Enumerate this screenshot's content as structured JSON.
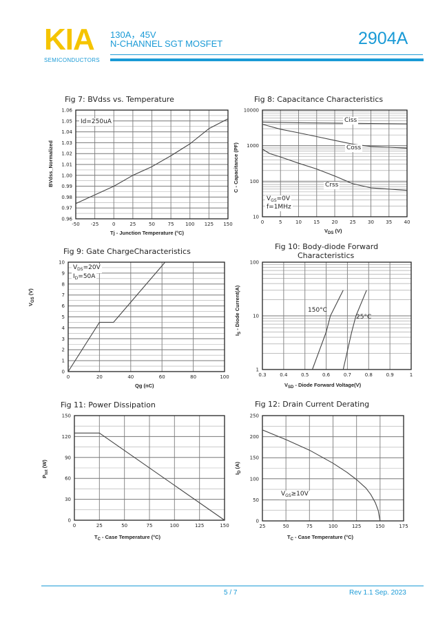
{
  "header": {
    "logo": "KIA",
    "logo_sub": "SEMICONDUCTORS",
    "spec_line1": "130A，45V",
    "spec_line2": "N-CHANNEL SGT MOSFET",
    "part_number": "2904A",
    "brand_colors": {
      "logo": "#f5c400",
      "accent": "#1a9ad6"
    }
  },
  "footer": {
    "page": "5 / 7",
    "revision": "Rev 1.1 Sep. 2023"
  },
  "chart_data": [
    {
      "type": "line",
      "title": "Fig 7: BVdss vs. Temperature",
      "ylabel": "BVdss_Normalized",
      "xlabel": "Tj - Junction Temperature (°C)",
      "xlim": [
        -50,
        150
      ],
      "ylim": [
        0.96,
        1.06
      ],
      "x_ticks": [
        -50,
        -25,
        0,
        25,
        50,
        75,
        100,
        125,
        150
      ],
      "y_ticks": [
        0.96,
        0.97,
        0.98,
        0.99,
        1.0,
        1.01,
        1.02,
        1.03,
        1.04,
        1.05,
        1.06
      ],
      "y_decimals": 2,
      "y_scale": "linear",
      "grid": true,
      "annotations": [
        "Id=250uA"
      ],
      "series": [
        {
          "x": [
            -50,
            -25,
            0,
            25,
            50,
            75,
            100,
            125,
            150
          ],
          "y": [
            0.974,
            0.982,
            0.99,
            1.0,
            1.008,
            1.018,
            1.029,
            1.043,
            1.052
          ]
        }
      ]
    },
    {
      "type": "line",
      "title": "Fig 8: Capacitance Characteristics",
      "ylabel": "C - Capacitance (PF)",
      "xlabel": {
        "main": "V",
        "sub": "DS",
        "rest": " (V)"
      },
      "xlim": [
        0,
        40
      ],
      "ylim": [
        10,
        10000
      ],
      "x_ticks": [
        0,
        5,
        10,
        15,
        20,
        25,
        30,
        35,
        40
      ],
      "y_ticks": [
        10,
        100,
        1000,
        10000
      ],
      "y_scale": "log",
      "grid": true,
      "annotations": [
        {
          "main": "V",
          "sub": "GS",
          "rest": "=0V"
        },
        "f=1MHz"
      ],
      "series": [
        {
          "name": "Ciss",
          "x": [
            0,
            10,
            20,
            30,
            40
          ],
          "y": [
            4600,
            4400,
            4300,
            4200,
            4100
          ]
        },
        {
          "name": "Coss",
          "x": [
            0,
            5,
            10,
            15,
            20,
            25,
            30,
            35,
            40
          ],
          "y": [
            4000,
            2900,
            2300,
            1800,
            1400,
            1100,
            950,
            900,
            850
          ]
        },
        {
          "name": "Crss",
          "x": [
            0,
            2,
            5,
            10,
            15,
            20,
            25,
            30,
            35,
            40
          ],
          "y": [
            800,
            600,
            480,
            320,
            220,
            140,
            85,
            65,
            60,
            55
          ]
        }
      ]
    },
    {
      "type": "line",
      "title": "Fig 9: Gate ChargeCharacteristics",
      "ylabel": {
        "main": "V",
        "sub": "GS",
        "rest": " (V)"
      },
      "xlabel": "Qg (nC)",
      "xlim": [
        0,
        100
      ],
      "ylim": [
        0,
        10
      ],
      "x_ticks": [
        0,
        20,
        40,
        60,
        80,
        100
      ],
      "y_ticks": [
        0,
        1,
        2,
        3,
        4,
        5,
        6,
        7,
        8,
        9,
        10
      ],
      "y_decimals": 0,
      "y_scale": "linear",
      "grid": true,
      "annotations": [
        {
          "main": "V",
          "sub": "DS",
          "rest": "=20V"
        },
        {
          "main": "I",
          "sub": "D",
          "rest": "=50A"
        }
      ],
      "series": [
        {
          "x": [
            0,
            20,
            29,
            62
          ],
          "y": [
            0,
            4.5,
            4.5,
            10
          ]
        }
      ]
    },
    {
      "type": "line",
      "title": "Fig 10: Body-diode Forward",
      "title_line2": "Characteristics",
      "ylabel": {
        "main": "I",
        "sub": "S",
        "rest": " - Diode Current(A)"
      },
      "xlabel": {
        "main": "V",
        "sub": "SD",
        "rest": " - Diode Forward Voltage(V)"
      },
      "xlim": [
        0.3,
        1
      ],
      "ylim": [
        1,
        100
      ],
      "x_ticks": [
        0.3,
        0.4,
        0.5,
        0.6,
        0.7,
        0.8,
        0.9,
        1
      ],
      "y_ticks": [
        1,
        10,
        100
      ],
      "y_scale": "log",
      "grid": true,
      "series": [
        {
          "name": "150°C",
          "x": [
            0.535,
            0.6,
            0.62,
            0.68
          ],
          "y": [
            1,
            5,
            10,
            30
          ]
        },
        {
          "name": "25°C",
          "x": [
            0.68,
            0.72,
            0.74,
            0.79
          ],
          "y": [
            1,
            5,
            10,
            30
          ]
        }
      ]
    },
    {
      "type": "line",
      "title": "Fig 11: Power Dissipation",
      "ylabel": {
        "main": "P",
        "sub": "tot",
        "rest": " (W)"
      },
      "xlabel": {
        "main": "T",
        "sub": "C",
        "rest": " - Case Temperature (°C)"
      },
      "xlim": [
        0,
        150
      ],
      "ylim": [
        0,
        150
      ],
      "x_ticks": [
        0,
        25,
        50,
        75,
        100,
        125,
        150
      ],
      "y_ticks": [
        0,
        30,
        60,
        90,
        120,
        150
      ],
      "y_decimals": 0,
      "y_scale": "linear",
      "grid": true,
      "series": [
        {
          "x": [
            0,
            25,
            150
          ],
          "y": [
            125,
            125,
            0
          ]
        }
      ]
    },
    {
      "type": "line",
      "title": "Fig 12: Drain Current Derating",
      "ylabel": {
        "main": "I",
        "sub": "D",
        "rest": " (A)"
      },
      "xlabel": {
        "main": "T",
        "sub": "C",
        "rest": " - Case Temperature (°C)"
      },
      "xlim": [
        25,
        175
      ],
      "ylim": [
        0,
        250
      ],
      "x_ticks": [
        25,
        50,
        75,
        100,
        125,
        150,
        175
      ],
      "y_ticks": [
        0,
        50,
        100,
        150,
        200,
        250
      ],
      "y_decimals": 0,
      "y_scale": "linear",
      "grid": true,
      "annotations": [
        {
          "main": "V",
          "sub": "GS",
          "rest": "≥10V"
        }
      ],
      "series": [
        {
          "x": [
            25,
            50,
            75,
            100,
            115,
            125,
            135,
            140,
            145,
            148,
            150
          ],
          "y": [
            216,
            193,
            168,
            137,
            115,
            98,
            78,
            63,
            43,
            25,
            0
          ]
        }
      ]
    }
  ]
}
